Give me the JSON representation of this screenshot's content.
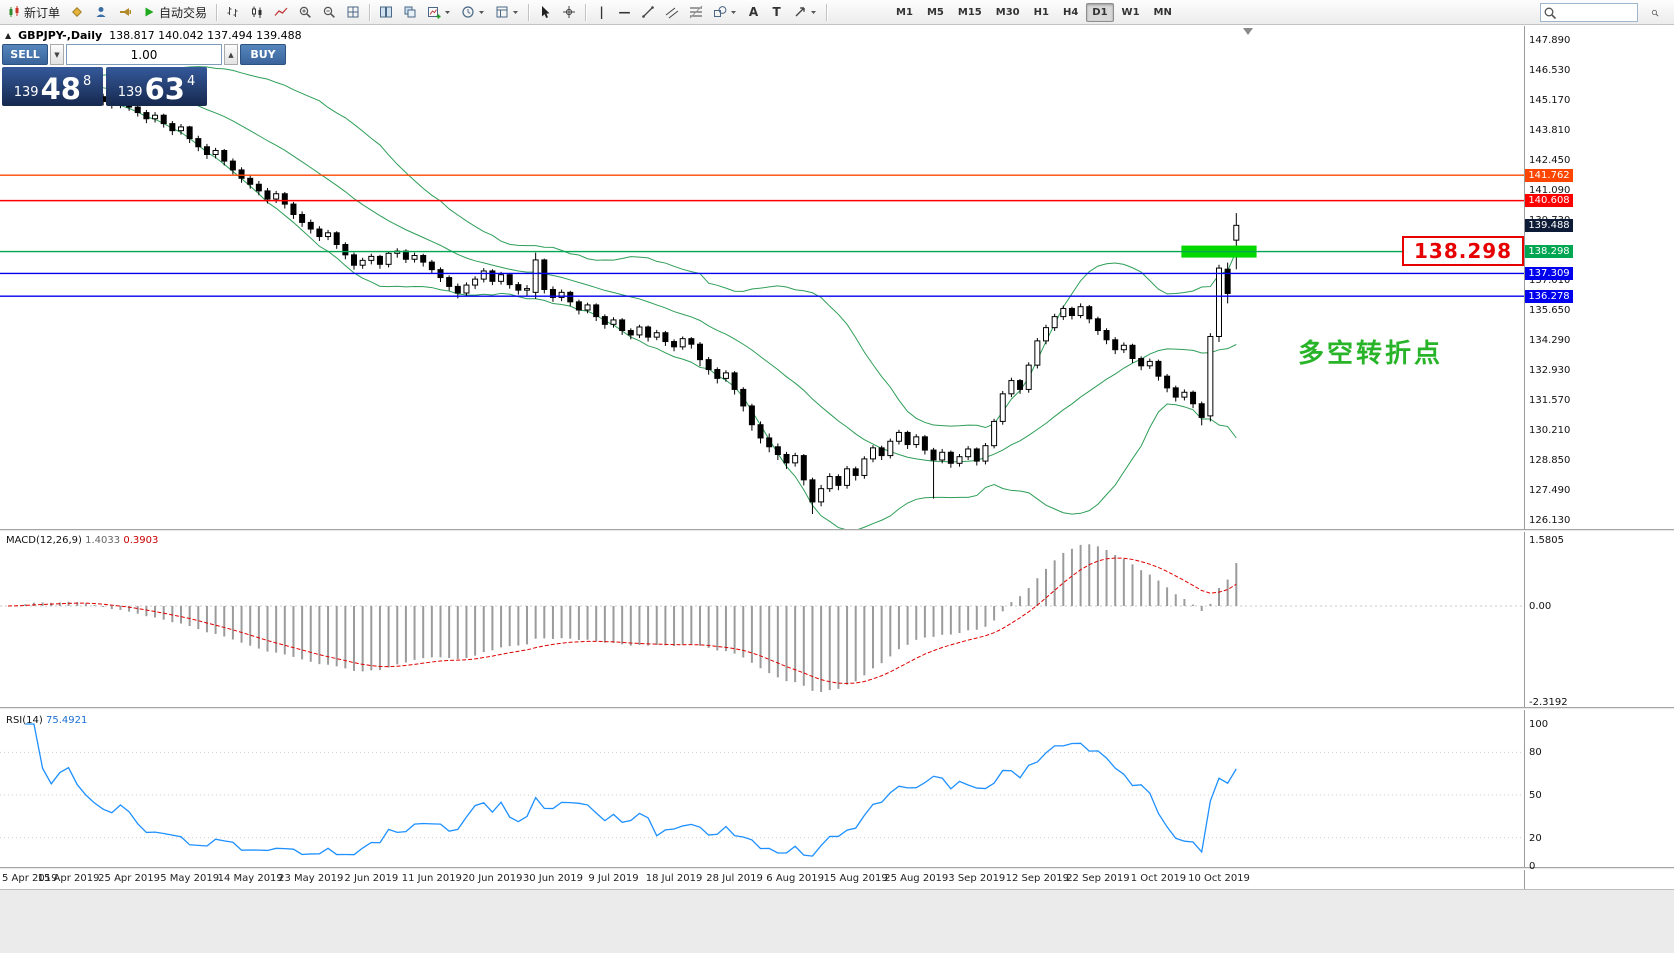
{
  "toolbar": {
    "search_placeholder": "",
    "items": [
      {
        "type": "button",
        "name": "new-order",
        "icon": "new-order",
        "label": "新订单"
      },
      {
        "type": "button",
        "name": "market-watch",
        "icon": "market-watch"
      },
      {
        "type": "button",
        "name": "data-window",
        "icon": "data-window"
      },
      {
        "type": "button",
        "name": "alerts",
        "icon": "megaphone"
      },
      {
        "type": "button",
        "name": "auto-trading",
        "icon": "play",
        "label": "自动交易"
      },
      {
        "type": "sep"
      },
      {
        "type": "button",
        "name": "bar-chart-mode",
        "icon": "ohlc-bars"
      },
      {
        "type": "button",
        "name": "candle-chart-mode",
        "icon": "candles"
      },
      {
        "type": "button",
        "name": "line-chart-mode",
        "icon": "line-chart"
      },
      {
        "type": "button",
        "name": "zoom-in",
        "icon": "zoom-in"
      },
      {
        "type": "button",
        "name": "zoom-out",
        "icon": "zoom-out"
      },
      {
        "type": "button",
        "name": "auto-arrange",
        "icon": "grid"
      },
      {
        "type": "sep"
      },
      {
        "type": "button",
        "name": "tile-windows",
        "icon": "tile"
      },
      {
        "type": "button",
        "name": "cascade-windows",
        "icon": "cascade"
      },
      {
        "type": "button",
        "name": "new-chart",
        "icon": "chart-plus",
        "caret": true
      },
      {
        "type": "button",
        "name": "profiles",
        "icon": "clock",
        "caret": true
      },
      {
        "type": "button",
        "name": "templates",
        "icon": "template",
        "caret": true
      },
      {
        "type": "sep"
      },
      {
        "type": "button",
        "name": "cursor-tool",
        "icon": "cursor"
      },
      {
        "type": "button",
        "name": "crosshair-tool",
        "icon": "crosshair"
      },
      {
        "type": "sep"
      },
      {
        "type": "button",
        "name": "vline-tool",
        "icon": "vline"
      },
      {
        "type": "button",
        "name": "hline-tool",
        "icon": "hline"
      },
      {
        "type": "button",
        "name": "trendline-tool",
        "icon": "trendline"
      },
      {
        "type": "button",
        "name": "channel-tool",
        "icon": "channel"
      },
      {
        "type": "button",
        "name": "fibonacci-tool",
        "icon": "fibo"
      },
      {
        "type": "button",
        "name": "shapes-tool",
        "icon": "shapes",
        "caret": true
      },
      {
        "type": "button",
        "name": "text-tool",
        "icon": "text"
      },
      {
        "type": "button",
        "name": "label-tool",
        "icon": "label"
      },
      {
        "type": "button",
        "name": "arrows-tool",
        "icon": "arrow",
        "caret": true
      },
      {
        "type": "sep"
      }
    ],
    "timeframes": [
      "M1",
      "M5",
      "M15",
      "M30",
      "H1",
      "H4",
      "D1",
      "W1",
      "MN"
    ],
    "active_timeframe": "D1"
  },
  "header": {
    "collapse_glyph": "▲",
    "symbol_title": "GBPJPY-,Daily",
    "ohlc_text": "138.817 140.042 137.494 139.488"
  },
  "trade_panel": {
    "sell_label": "SELL",
    "buy_label": "BUY",
    "volume": "1.00",
    "volume_down_glyph": "▼",
    "volume_up_glyph": "▲",
    "sell_price": {
      "prefix": "139",
      "big": "48",
      "sup": "8"
    },
    "buy_price": {
      "prefix": "139",
      "big": "63",
      "sup": "4"
    }
  },
  "price_axis": {
    "labels": [
      "147.890",
      "146.530",
      "145.170",
      "143.810",
      "142.450",
      "141.090",
      "139.730",
      "138.370",
      "137.010",
      "135.650",
      "134.290",
      "132.930",
      "131.570",
      "130.210",
      "128.850",
      "127.490",
      "126.130"
    ]
  },
  "lines": [
    {
      "value": 141.762,
      "label": "141.762",
      "color": "#ff4500"
    },
    {
      "value": 140.608,
      "label": "140.608",
      "color": "#ff0000"
    },
    {
      "value": 138.298,
      "label": "138.298",
      "color": "#00a651"
    },
    {
      "value": 137.309,
      "label": "137.309",
      "color": "#0000ee"
    },
    {
      "value": 136.278,
      "label": "136.278",
      "color": "#0000ee"
    }
  ],
  "current_price": {
    "value": 139.488,
    "label": "139.488",
    "bg": "#0d1b36"
  },
  "highlight": {
    "price": 138.298,
    "from_index": 136,
    "to_index": 144,
    "color": "#00d800"
  },
  "level_box": {
    "text": "138.298"
  },
  "annotation": {
    "text": "多空转折点"
  },
  "macd_panel": {
    "label": "MACD(12,26,9)",
    "main_value": "1.4033",
    "signal_value": "0.3903",
    "axis": [
      "1.5805",
      "0.00",
      "-2.3192"
    ],
    "axis_values": [
      1.5805,
      0,
      -2.3192
    ]
  },
  "rsi_panel": {
    "label": "RSI(14)",
    "value": "75.4921",
    "axis": [
      "100",
      "80",
      "50",
      "20",
      "0"
    ],
    "axis_values": [
      100,
      80,
      50,
      20,
      0
    ],
    "levels": [
      80,
      50,
      20
    ]
  },
  "chart_data": {
    "type": "candlestick",
    "symbol": "GBPJPY",
    "period": "Daily",
    "current_bar": {
      "open": 138.817,
      "high": 140.042,
      "low": 137.494,
      "close": 139.488
    },
    "date_labels": [
      "5 Apr 2019",
      "15 Apr 2019",
      "25 Apr 2019",
      "5 May 2019",
      "14 May 2019",
      "23 May 2019",
      "2 Jun 2019",
      "11 Jun 2019",
      "20 Jun 2019",
      "30 Jun 2019",
      "9 Jul 2019",
      "18 Jul 2019",
      "28 Jul 2019",
      "6 Aug 2019",
      "15 Aug 2019",
      "25 Aug 2019",
      "3 Sep 2019",
      "12 Sep 2019",
      "22 Sep 2019",
      "1 Oct 2019",
      "10 Oct 2019"
    ],
    "date_tick_step": 7,
    "price_axis": {
      "min": 126.13,
      "max": 148.5,
      "label_step": 1.36
    },
    "indicators": {
      "bollinger_period": 20,
      "bollinger_deviation": 2,
      "macd": [
        12,
        26,
        9
      ],
      "rsi_period": 14
    },
    "candles": [
      [
        145.4,
        145.72,
        145.18,
        145.55
      ],
      [
        145.55,
        145.95,
        145.38,
        145.8
      ],
      [
        145.8,
        146.1,
        145.6,
        145.95
      ],
      [
        145.95,
        146.28,
        145.75,
        146.1
      ],
      [
        146.1,
        146.22,
        145.7,
        145.85
      ],
      [
        145.85,
        146.02,
        145.52,
        145.7
      ],
      [
        145.7,
        146.05,
        145.55,
        145.92
      ],
      [
        145.92,
        146.2,
        145.72,
        146.05
      ],
      [
        146.05,
        146.15,
        145.62,
        145.78
      ],
      [
        145.78,
        145.9,
        145.4,
        145.55
      ],
      [
        145.55,
        145.68,
        145.15,
        145.32
      ],
      [
        145.32,
        145.45,
        144.92,
        145.1
      ],
      [
        145.1,
        145.25,
        144.78,
        144.95
      ],
      [
        144.95,
        145.32,
        144.8,
        145.18
      ],
      [
        145.18,
        145.28,
        144.68,
        144.85
      ],
      [
        144.85,
        145.0,
        144.42,
        144.6
      ],
      [
        144.6,
        144.72,
        144.12,
        144.32
      ],
      [
        144.32,
        144.62,
        144.15,
        144.48
      ],
      [
        144.48,
        144.55,
        143.92,
        144.1
      ],
      [
        144.1,
        144.22,
        143.58,
        143.78
      ],
      [
        143.78,
        144.08,
        143.6,
        143.95
      ],
      [
        143.95,
        144.0,
        143.22,
        143.42
      ],
      [
        143.42,
        143.55,
        142.85,
        143.05
      ],
      [
        143.05,
        143.18,
        142.5,
        142.7
      ],
      [
        142.7,
        143.0,
        142.52,
        142.88
      ],
      [
        142.88,
        142.95,
        142.2,
        142.4
      ],
      [
        142.4,
        142.52,
        141.8,
        142.0
      ],
      [
        142.0,
        142.12,
        141.42,
        141.62
      ],
      [
        141.62,
        141.78,
        141.15,
        141.35
      ],
      [
        141.35,
        141.5,
        140.85,
        141.05
      ],
      [
        141.05,
        141.18,
        140.48,
        140.68
      ],
      [
        140.68,
        141.05,
        140.5,
        140.92
      ],
      [
        140.92,
        141.0,
        140.25,
        140.45
      ],
      [
        140.45,
        140.55,
        139.78,
        139.98
      ],
      [
        139.98,
        140.12,
        139.42,
        139.62
      ],
      [
        139.62,
        139.75,
        139.12,
        139.32
      ],
      [
        139.32,
        139.45,
        138.78,
        138.98
      ],
      [
        138.98,
        139.28,
        138.82,
        139.15
      ],
      [
        139.15,
        139.22,
        138.42,
        138.62
      ],
      [
        138.62,
        138.72,
        137.95,
        138.15
      ],
      [
        138.15,
        138.25,
        137.48,
        137.68
      ],
      [
        137.68,
        138.02,
        137.52,
        137.9
      ],
      [
        137.9,
        138.2,
        137.72,
        138.08
      ],
      [
        138.08,
        138.15,
        137.52,
        137.72
      ],
      [
        137.72,
        138.32,
        137.58,
        138.22
      ],
      [
        138.22,
        138.45,
        138.02,
        138.32
      ],
      [
        138.32,
        138.4,
        137.78,
        137.95
      ],
      [
        137.95,
        138.25,
        137.8,
        138.12
      ],
      [
        138.12,
        138.2,
        137.62,
        137.82
      ],
      [
        137.82,
        137.92,
        137.28,
        137.48
      ],
      [
        137.48,
        137.58,
        136.92,
        137.12
      ],
      [
        137.12,
        137.22,
        136.52,
        136.72
      ],
      [
        136.72,
        136.85,
        136.18,
        136.42
      ],
      [
        136.42,
        136.9,
        136.28,
        136.78
      ],
      [
        136.78,
        137.18,
        136.6,
        137.05
      ],
      [
        137.05,
        137.55,
        136.9,
        137.42
      ],
      [
        137.42,
        137.5,
        136.78,
        136.95
      ],
      [
        136.95,
        137.38,
        136.8,
        137.25
      ],
      [
        137.25,
        137.32,
        136.62,
        136.8
      ],
      [
        136.8,
        136.92,
        136.35,
        136.55
      ],
      [
        136.55,
        136.78,
        136.3,
        136.62
      ],
      [
        136.45,
        138.25,
        136.15,
        137.92
      ],
      [
        137.92,
        137.98,
        136.4,
        136.58
      ],
      [
        136.58,
        136.72,
        136.02,
        136.22
      ],
      [
        136.22,
        136.58,
        136.05,
        136.45
      ],
      [
        136.45,
        136.52,
        135.82,
        136.02
      ],
      [
        136.02,
        136.12,
        135.45,
        135.65
      ],
      [
        135.65,
        135.98,
        135.5,
        135.88
      ],
      [
        135.88,
        135.95,
        135.15,
        135.35
      ],
      [
        135.35,
        135.45,
        134.8,
        135.0
      ],
      [
        135.0,
        135.32,
        134.85,
        135.2
      ],
      [
        135.2,
        135.28,
        134.52,
        134.72
      ],
      [
        134.72,
        134.82,
        134.32,
        134.52
      ],
      [
        134.52,
        134.98,
        134.38,
        134.88
      ],
      [
        134.88,
        134.95,
        134.22,
        134.42
      ],
      [
        134.42,
        134.75,
        134.28,
        134.62
      ],
      [
        134.62,
        134.7,
        134.02,
        134.22
      ],
      [
        134.22,
        134.32,
        133.78,
        133.98
      ],
      [
        133.98,
        134.45,
        133.85,
        134.35
      ],
      [
        134.35,
        134.42,
        133.9,
        134.1
      ],
      [
        134.1,
        134.2,
        133.1,
        133.4
      ],
      [
        133.4,
        133.52,
        132.72,
        132.95
      ],
      [
        132.95,
        133.05,
        132.32,
        132.55
      ],
      [
        132.55,
        132.92,
        132.4,
        132.8
      ],
      [
        132.8,
        132.88,
        131.82,
        132.05
      ],
      [
        132.05,
        132.15,
        131.05,
        131.3
      ],
      [
        131.3,
        131.4,
        130.18,
        130.45
      ],
      [
        130.45,
        130.6,
        129.6,
        129.85
      ],
      [
        129.85,
        130.05,
        129.2,
        129.45
      ],
      [
        129.45,
        129.6,
        128.85,
        129.1
      ],
      [
        129.1,
        129.22,
        128.45,
        128.72
      ],
      [
        128.72,
        129.18,
        128.55,
        129.05
      ],
      [
        129.05,
        129.12,
        127.7,
        127.95
      ],
      [
        127.95,
        128.05,
        126.4,
        126.95
      ],
      [
        126.95,
        127.72,
        126.75,
        127.55
      ],
      [
        127.55,
        128.25,
        127.4,
        128.1
      ],
      [
        128.1,
        128.2,
        127.48,
        127.7
      ],
      [
        127.7,
        128.58,
        127.55,
        128.45
      ],
      [
        128.45,
        128.55,
        127.92,
        128.15
      ],
      [
        128.15,
        129.02,
        128.0,
        128.9
      ],
      [
        128.9,
        129.52,
        128.75,
        129.4
      ],
      [
        129.4,
        129.5,
        128.85,
        129.05
      ],
      [
        129.05,
        129.82,
        128.92,
        129.7
      ],
      [
        129.7,
        130.22,
        129.55,
        130.1
      ],
      [
        130.1,
        130.18,
        129.35,
        129.55
      ],
      [
        129.55,
        130.02,
        129.4,
        129.9
      ],
      [
        129.9,
        129.98,
        129.1,
        129.3
      ],
      [
        129.3,
        129.4,
        127.1,
        128.85
      ],
      [
        128.85,
        129.35,
        128.7,
        129.2
      ],
      [
        129.2,
        129.28,
        128.5,
        128.7
      ],
      [
        128.7,
        129.12,
        128.55,
        129.0
      ],
      [
        129.0,
        129.48,
        128.85,
        129.35
      ],
      [
        129.35,
        129.42,
        128.6,
        128.8
      ],
      [
        128.8,
        129.62,
        128.65,
        129.5
      ],
      [
        129.5,
        130.72,
        129.38,
        130.6
      ],
      [
        130.6,
        131.98,
        130.45,
        131.85
      ],
      [
        131.85,
        132.58,
        131.7,
        132.45
      ],
      [
        132.45,
        132.52,
        131.85,
        132.05
      ],
      [
        132.05,
        133.28,
        131.9,
        133.15
      ],
      [
        133.15,
        134.38,
        133.0,
        134.25
      ],
      [
        134.25,
        134.98,
        134.1,
        134.85
      ],
      [
        134.85,
        135.48,
        134.7,
        135.35
      ],
      [
        135.35,
        135.85,
        135.2,
        135.72
      ],
      [
        135.72,
        135.8,
        135.22,
        135.4
      ],
      [
        135.4,
        135.95,
        135.28,
        135.8
      ],
      [
        135.8,
        135.88,
        135.05,
        135.25
      ],
      [
        135.25,
        135.35,
        134.52,
        134.72
      ],
      [
        134.72,
        134.82,
        134.1,
        134.3
      ],
      [
        134.3,
        134.42,
        133.65,
        133.85
      ],
      [
        133.85,
        134.18,
        133.7,
        134.05
      ],
      [
        134.05,
        134.12,
        133.25,
        133.45
      ],
      [
        133.45,
        133.55,
        132.92,
        133.12
      ],
      [
        133.12,
        133.45,
        132.98,
        133.32
      ],
      [
        133.32,
        133.4,
        132.45,
        132.65
      ],
      [
        132.65,
        132.75,
        131.92,
        132.12
      ],
      [
        132.12,
        132.22,
        131.5,
        131.7
      ],
      [
        131.7,
        132.05,
        131.55,
        131.92
      ],
      [
        131.92,
        132.0,
        131.2,
        131.4
      ],
      [
        131.4,
        131.5,
        130.42,
        130.78
      ],
      [
        130.85,
        134.6,
        130.6,
        134.45
      ],
      [
        134.45,
        137.7,
        134.2,
        137.55
      ],
      [
        137.5,
        137.8,
        135.95,
        136.4
      ],
      [
        138.817,
        140.042,
        137.494,
        139.488
      ]
    ]
  }
}
